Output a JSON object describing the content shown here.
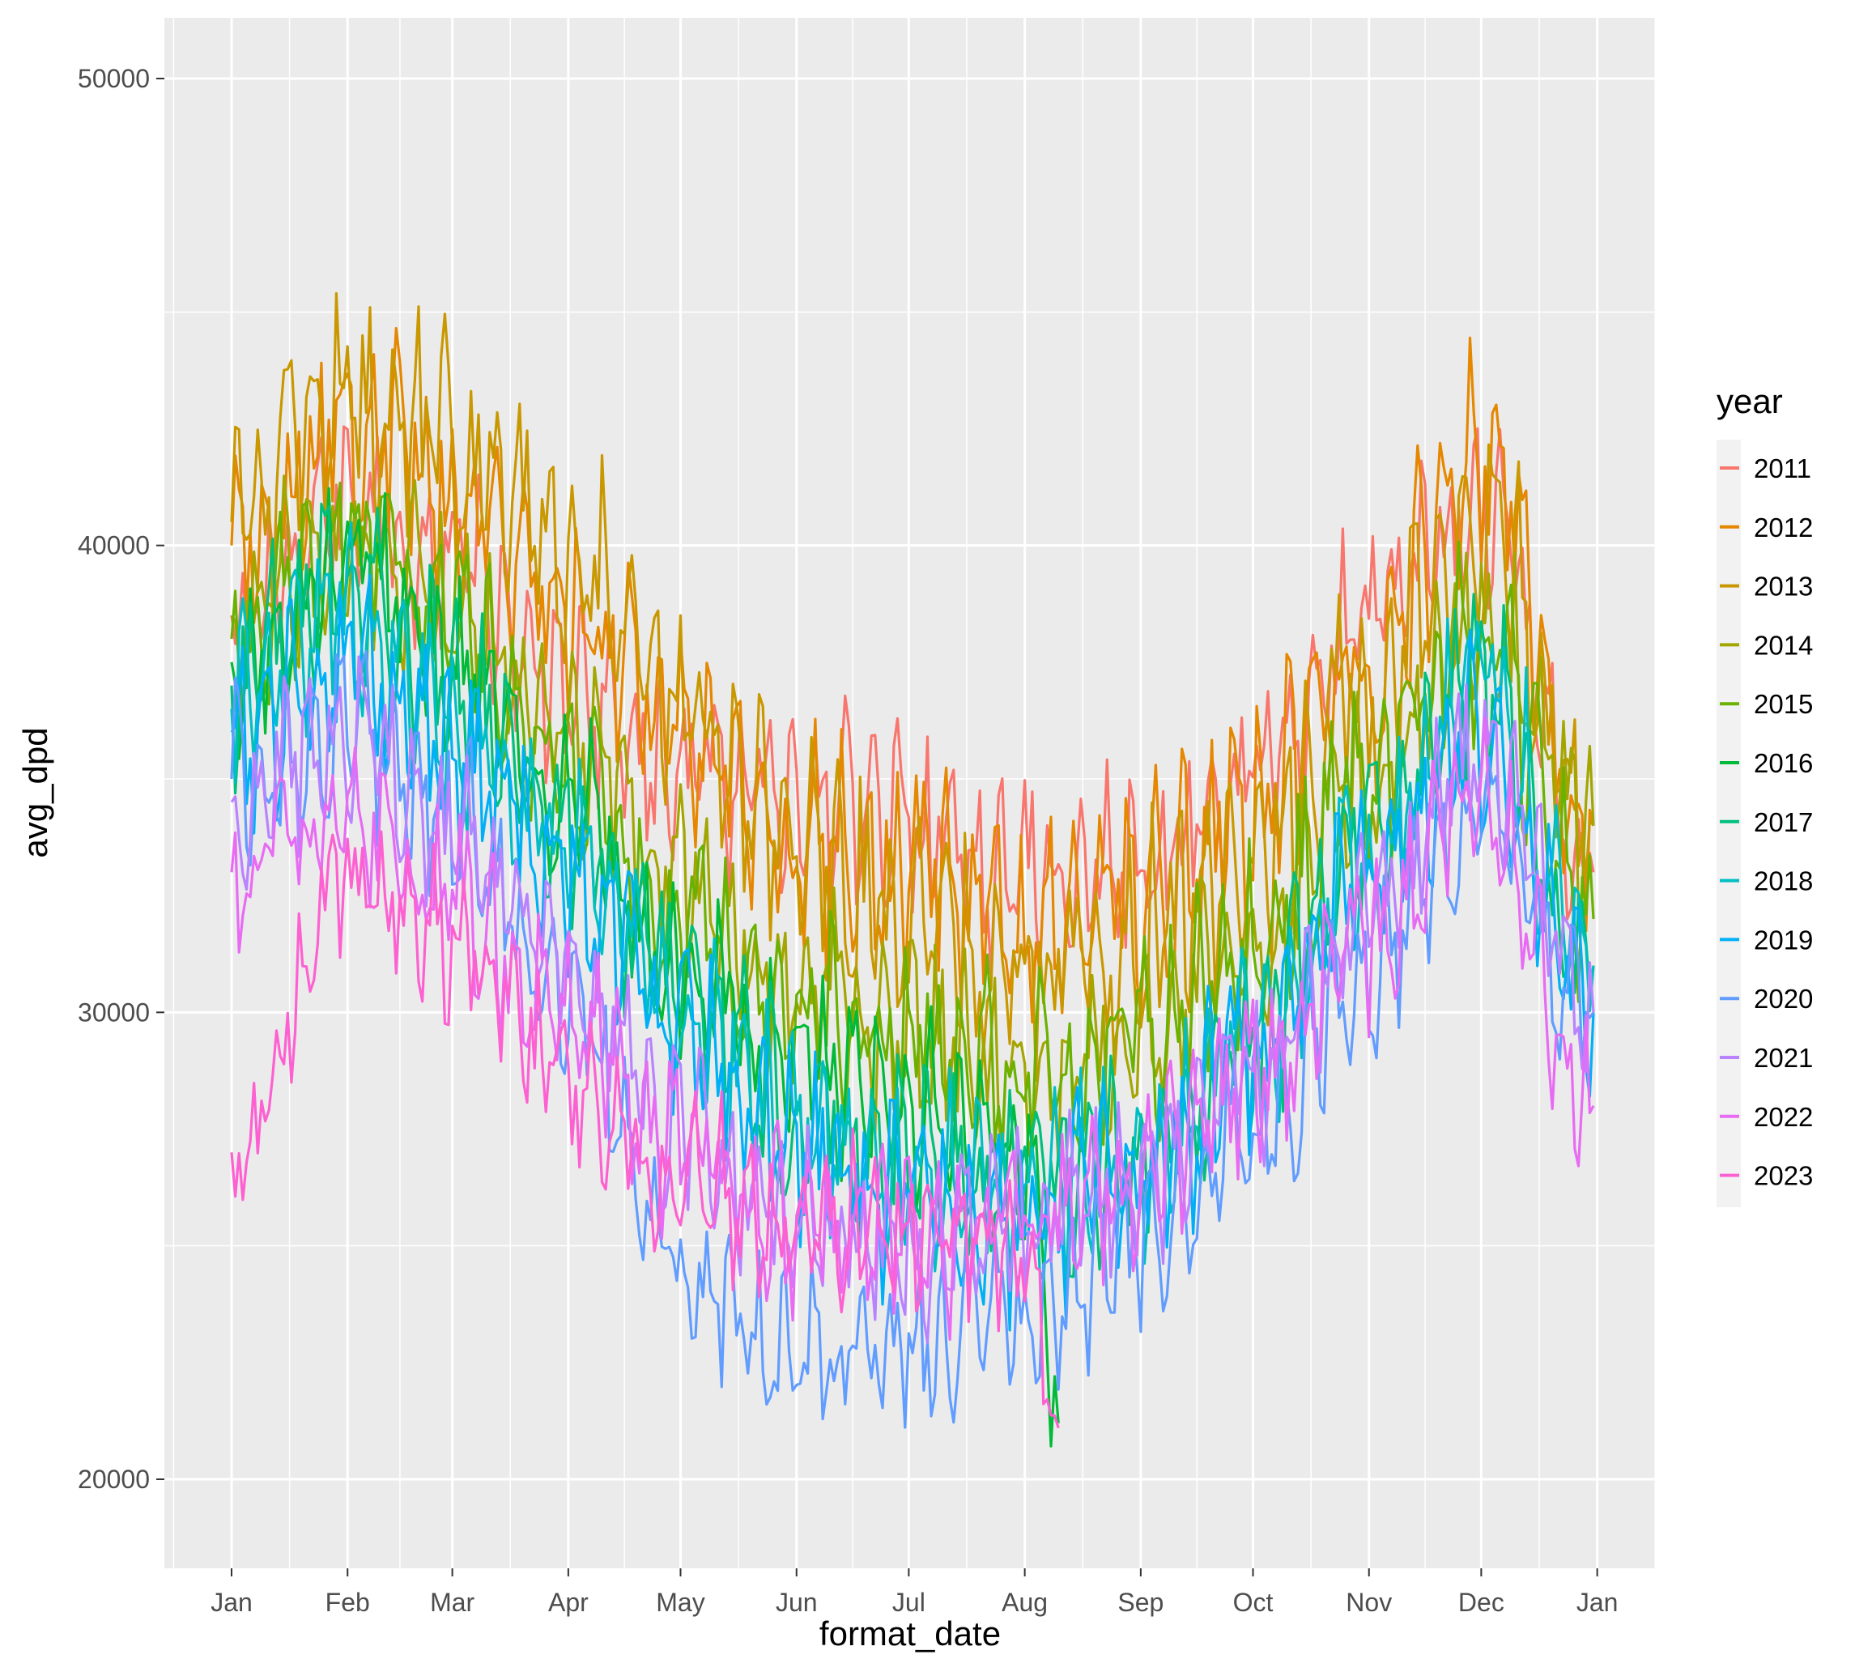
{
  "chart_data": {
    "type": "line",
    "xlabel": "format_date",
    "ylabel": "avg_dpd",
    "x_domain": [
      "2023-01-01",
      "2023-12-31"
    ],
    "x_ticks": [
      {
        "date": "2023-01-01",
        "label": "Jan"
      },
      {
        "date": "2023-02-01",
        "label": "Feb"
      },
      {
        "date": "2023-03-01",
        "label": "Mar"
      },
      {
        "date": "2023-04-01",
        "label": "Apr"
      },
      {
        "date": "2023-05-01",
        "label": "May"
      },
      {
        "date": "2023-06-01",
        "label": "Jun"
      },
      {
        "date": "2023-07-01",
        "label": "Jul"
      },
      {
        "date": "2023-08-01",
        "label": "Aug"
      },
      {
        "date": "2023-09-01",
        "label": "Sep"
      },
      {
        "date": "2023-10-01",
        "label": "Oct"
      },
      {
        "date": "2023-11-01",
        "label": "Nov"
      },
      {
        "date": "2023-12-01",
        "label": "Dec"
      },
      {
        "date": "2024-01-01",
        "label": "Jan"
      }
    ],
    "ylim": [
      17900,
      51300
    ],
    "y_ticks": [
      20000,
      30000,
      40000,
      50000
    ],
    "y_tick_labels": [
      "20000",
      "30000",
      "40000",
      "50000"
    ],
    "grid": true,
    "legend": {
      "title": "year",
      "placement": "right"
    },
    "series": [
      {
        "name": "2011",
        "color": "#F8766D",
        "end_date": "2023-12-31",
        "x": [
          "2023-01-01",
          "2023-02-01",
          "2023-03-01",
          "2023-04-01",
          "2023-05-01",
          "2023-06-01",
          "2023-07-01",
          "2023-08-01",
          "2023-09-01",
          "2023-10-01",
          "2023-11-01",
          "2023-12-01",
          "2023-12-31"
        ],
        "y": [
          38500,
          41000,
          39500,
          37000,
          35000,
          34500,
          34000,
          33000,
          33000,
          35000,
          38500,
          41000,
          33000
        ],
        "amp": 2000,
        "seed": 11
      },
      {
        "name": "2012",
        "color": "#E58700",
        "end_date": "2023-12-31",
        "x": [
          "2023-01-01",
          "2023-02-01",
          "2023-03-01",
          "2023-04-01",
          "2023-05-01",
          "2023-06-01",
          "2023-07-01",
          "2023-08-01",
          "2023-09-01",
          "2023-10-01",
          "2023-11-01",
          "2023-12-01",
          "2023-12-31"
        ],
        "y": [
          40000,
          42500,
          41000,
          39000,
          36000,
          33500,
          33000,
          31500,
          32500,
          34500,
          37500,
          42000,
          34000
        ],
        "amp": 2300,
        "seed": 12
      },
      {
        "name": "2013",
        "color": "#C99800",
        "end_date": "2023-12-31",
        "x": [
          "2023-01-01",
          "2023-02-01",
          "2023-03-01",
          "2023-04-01",
          "2023-05-01",
          "2023-06-01",
          "2023-07-01",
          "2023-08-01",
          "2023-09-01",
          "2023-10-01",
          "2023-11-01",
          "2023-12-01",
          "2023-12-31"
        ],
        "y": [
          40500,
          43000,
          42000,
          40000,
          36500,
          33500,
          32000,
          31000,
          31500,
          33500,
          37000,
          40500,
          34000
        ],
        "amp": 2400,
        "seed": 13
      },
      {
        "name": "2014",
        "color": "#A3A500",
        "end_date": "2023-12-31",
        "x": [
          "2023-01-01",
          "2023-02-01",
          "2023-03-01",
          "2023-04-01",
          "2023-05-01",
          "2023-06-01",
          "2023-07-01",
          "2023-08-01",
          "2023-09-01",
          "2023-10-01",
          "2023-11-01",
          "2023-12-01",
          "2023-12-31"
        ],
        "y": [
          38500,
          40000,
          38500,
          36000,
          33000,
          30500,
          29500,
          28500,
          29500,
          31500,
          35000,
          38500,
          34000
        ],
        "amp": 2000,
        "seed": 14
      },
      {
        "name": "2015",
        "color": "#6BB100",
        "end_date": "2023-12-31",
        "x": [
          "2023-01-01",
          "2023-02-01",
          "2023-03-01",
          "2023-04-01",
          "2023-05-01",
          "2023-06-01",
          "2023-07-01",
          "2023-08-01",
          "2023-09-01",
          "2023-10-01",
          "2023-11-01",
          "2023-12-01",
          "2023-12-31"
        ],
        "y": [
          38000,
          40500,
          38500,
          35500,
          32000,
          30000,
          29500,
          28500,
          29500,
          31500,
          35000,
          38000,
          32000
        ],
        "amp": 2000,
        "seed": 15
      },
      {
        "name": "2016",
        "color": "#00BA38",
        "end_date": "2023-08-10",
        "x": [
          "2023-01-01",
          "2023-02-01",
          "2023-03-01",
          "2023-04-01",
          "2023-05-01",
          "2023-06-01",
          "2023-07-01",
          "2023-08-01",
          "2023-08-10"
        ],
        "y": [
          37500,
          40000,
          37500,
          34500,
          31000,
          29000,
          28000,
          27000,
          21200
        ],
        "amp": 1900,
        "seed": 16
      },
      {
        "name": "2017",
        "color": "#00BF7D",
        "end_date": "2023-12-31",
        "x": [
          "2023-01-01",
          "2023-02-01",
          "2023-03-01",
          "2023-04-01",
          "2023-05-01",
          "2023-06-01",
          "2023-07-01",
          "2023-08-01",
          "2023-09-01",
          "2023-10-01",
          "2023-11-01",
          "2023-12-01",
          "2023-12-31"
        ],
        "y": [
          37000,
          39500,
          37000,
          34000,
          30500,
          28000,
          27000,
          26500,
          27000,
          29500,
          33500,
          37000,
          31000
        ],
        "amp": 2000,
        "seed": 17
      },
      {
        "name": "2018",
        "color": "#00BFC4",
        "end_date": "2023-12-31",
        "x": [
          "2023-01-01",
          "2023-02-01",
          "2023-03-01",
          "2023-04-01",
          "2023-05-01",
          "2023-06-01",
          "2023-07-01",
          "2023-08-01",
          "2023-09-01",
          "2023-10-01",
          "2023-11-01",
          "2023-12-01",
          "2023-12-31"
        ],
        "y": [
          36500,
          38500,
          36000,
          33500,
          30000,
          27500,
          26500,
          26000,
          27000,
          29500,
          33500,
          37000,
          31000
        ],
        "amp": 2000,
        "seed": 18
      },
      {
        "name": "2019",
        "color": "#00B0F6",
        "end_date": "2023-12-31",
        "x": [
          "2023-01-01",
          "2023-02-01",
          "2023-03-01",
          "2023-04-01",
          "2023-05-01",
          "2023-06-01",
          "2023-07-01",
          "2023-08-01",
          "2023-09-01",
          "2023-10-01",
          "2023-11-01",
          "2023-12-01",
          "2023-12-31"
        ],
        "y": [
          36000,
          37500,
          35500,
          33000,
          29500,
          27000,
          26000,
          25500,
          26500,
          29000,
          33000,
          36000,
          30000
        ],
        "amp": 2000,
        "seed": 19
      },
      {
        "name": "2020",
        "color": "#619CFF",
        "end_date": "2023-12-31",
        "x": [
          "2023-01-01",
          "2023-02-01",
          "2023-03-01",
          "2023-04-01",
          "2023-05-01",
          "2023-06-01",
          "2023-07-01",
          "2023-08-01",
          "2023-09-01",
          "2023-10-01",
          "2023-11-01",
          "2023-12-01",
          "2023-12-31"
        ],
        "y": [
          35000,
          36000,
          34000,
          30000,
          24500,
          22500,
          23000,
          23500,
          25000,
          27500,
          31000,
          34000,
          30000
        ],
        "amp": 1800,
        "seed": 20
      },
      {
        "name": "2021",
        "color": "#B983FF",
        "end_date": "2023-12-31",
        "x": [
          "2023-01-01",
          "2023-02-01",
          "2023-03-01",
          "2023-04-01",
          "2023-05-01",
          "2023-06-01",
          "2023-07-01",
          "2023-08-01",
          "2023-09-01",
          "2023-10-01",
          "2023-11-01",
          "2023-12-01",
          "2023-12-31"
        ],
        "y": [
          34500,
          36000,
          34000,
          31000,
          27500,
          25500,
          25000,
          25500,
          26500,
          28500,
          32000,
          35500,
          30000
        ],
        "amp": 1800,
        "seed": 21
      },
      {
        "name": "2022",
        "color": "#E76BF3",
        "end_date": "2023-12-31",
        "x": [
          "2023-01-01",
          "2023-02-01",
          "2023-03-01",
          "2023-04-01",
          "2023-05-01",
          "2023-06-01",
          "2023-07-01",
          "2023-08-01",
          "2023-09-01",
          "2023-10-01",
          "2023-11-01",
          "2023-12-01",
          "2023-12-31"
        ],
        "y": [
          33000,
          34500,
          32500,
          30000,
          27000,
          25500,
          25000,
          25500,
          26500,
          28500,
          31500,
          34500,
          28000
        ],
        "amp": 1800,
        "seed": 22
      },
      {
        "name": "2023",
        "color": "#FD61D1",
        "end_date": "2023-08-10",
        "x": [
          "2023-01-01",
          "2023-02-01",
          "2023-03-01",
          "2023-04-01",
          "2023-05-01",
          "2023-06-01",
          "2023-07-01",
          "2023-08-01",
          "2023-08-10"
        ],
        "y": [
          27000,
          33000,
          31500,
          28500,
          26500,
          25500,
          25500,
          25000,
          21100
        ],
        "amp": 1700,
        "seed": 23
      }
    ]
  }
}
